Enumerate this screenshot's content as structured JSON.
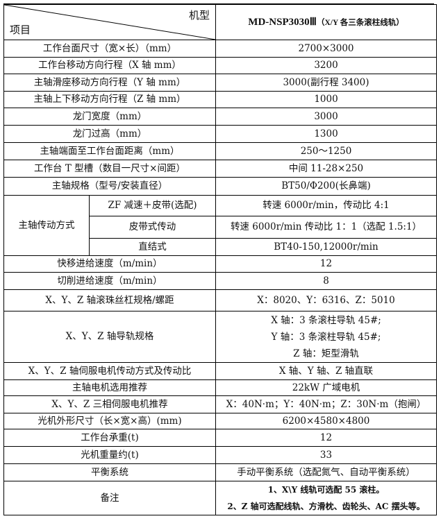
{
  "header": {
    "corner_top": "机型",
    "corner_bottom": "项目",
    "model": "MD-NSP3030Ⅲ",
    "model_note": "（X/Y 各三条滚柱线轨）"
  },
  "rows": [
    {
      "label": "工作台面尺寸（宽×长）（mm）",
      "value": "2700×3000"
    },
    {
      "label": "工作台移动方向行程（X 轴 mm）",
      "value": "3200"
    },
    {
      "label": "主轴滑座移动方向行程（Y 轴 mm）",
      "value": "3000(副行程 3400)"
    },
    {
      "label": "主轴上下移动方向行程（Z 轴 mm）",
      "value": "1000"
    },
    {
      "label": "龙门宽度（mm）",
      "value": "3000"
    },
    {
      "label": "龙门过高（mm）",
      "value": "1300"
    },
    {
      "label": "主轴端面至工作台面距离（mm）",
      "value": "250～1250"
    },
    {
      "label": "工作台 T 型槽（数目一尺寸×间距）",
      "value": "中间 11-28×250"
    },
    {
      "label": "主轴规格（型号/安装直径）",
      "value": "BT50/Φ200(长鼻端)"
    }
  ],
  "drive": {
    "label": "主轴传动方式",
    "items": [
      {
        "label": "ZF 减速＋皮带(选配)",
        "value": "转速 6000r/min，传动比 4:1"
      },
      {
        "label": "皮带式传动",
        "value": "转速 6000r/min 传动比 1：1（选配 1.5:1）"
      },
      {
        "label": "直结式",
        "value": "BT40-150,12000r/min"
      }
    ]
  },
  "rows2": [
    {
      "label": "快移进给速度（m/min）",
      "value": "12"
    },
    {
      "label": "切削进给速度（m/min）",
      "value": "8"
    },
    {
      "label": "X、Y、Z 轴滚珠丝杠规格/螺距",
      "value": "X：8020、Y：6316、Z：5010"
    }
  ],
  "rail": {
    "label": "X、Y、Z 轴导轨规格",
    "lines": [
      "X 轴：3 条滚柱导轨 45#;",
      "Y 轴：3 条滚柱导轨 45#;",
      "Z 轴：矩型滑轨"
    ]
  },
  "rows3": [
    {
      "label": "X、Y、Z 轴伺服电机传动方式及传动比",
      "value": "X 轴、Y 轴、Z 轴直联"
    },
    {
      "label": "主轴电机选用推荐",
      "value": "22kW 广域电机"
    },
    {
      "label": "X、Y、Z 三相伺服电机推荐",
      "value": "X：40N·m；Y：40N·m；Z：30N·m（抱闸）"
    },
    {
      "label": "光机外形尺寸（长×宽×高）(mm)",
      "value": "6200×4580×4800"
    },
    {
      "label": "工作台承重(t)",
      "value": "12"
    },
    {
      "label": "光机重量约(t)",
      "value": "33"
    },
    {
      "label": "平衡系统",
      "value": "手动平衡系统（选配氮气、自动平衡系统）"
    }
  ],
  "notes": {
    "label": "备注",
    "lines": [
      "1、X\\Y 线轨可选配 55 滚柱。",
      "2、Z 轴可选配线轨、方滑枕、齿轮头、AC 摆头等。"
    ]
  }
}
